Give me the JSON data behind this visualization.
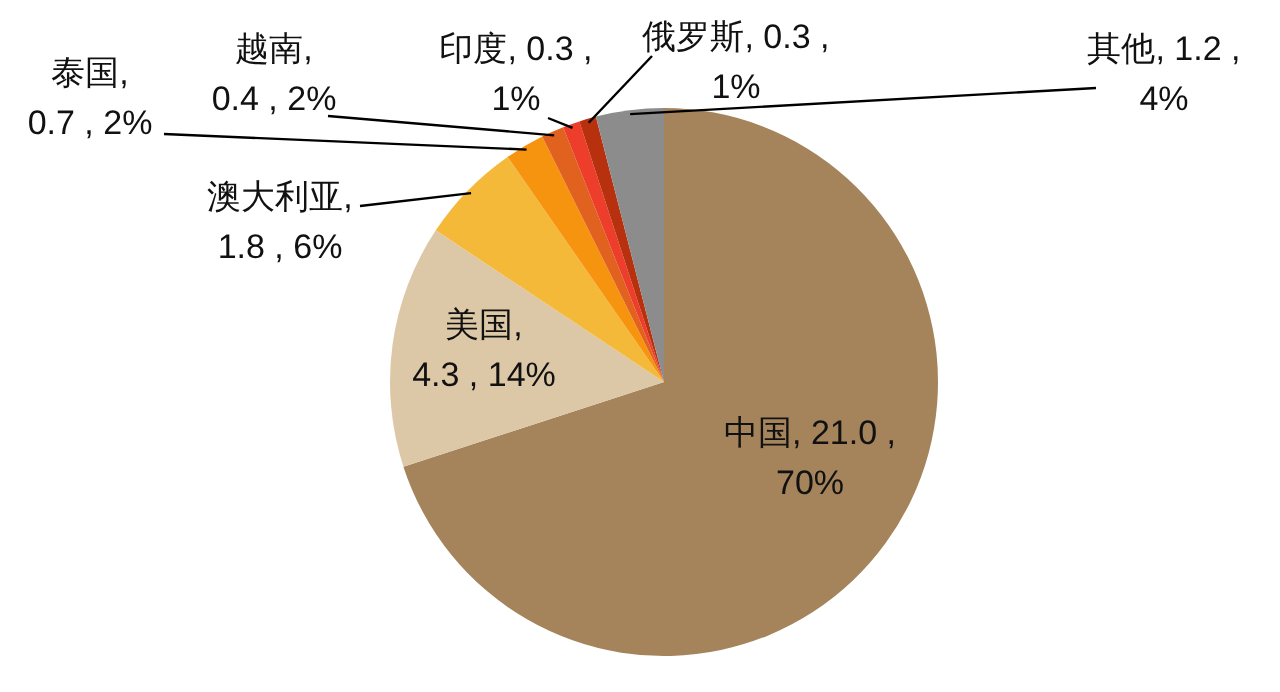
{
  "chart_data": {
    "type": "pie",
    "categories": [
      "中国",
      "美国",
      "澳大利亚",
      "泰国",
      "越南",
      "印度",
      "俄罗斯",
      "其他"
    ],
    "values": [
      21.0,
      4.3,
      1.8,
      0.7,
      0.4,
      0.3,
      0.3,
      1.2
    ],
    "value_labels": [
      ", 21.0 , 70%",
      ", 4.3 , 14%",
      ", 1.8 , 6%",
      ", 0.7 , 2%",
      ", 0.4 , 2%",
      ", 0.3 , 1%",
      ", 0.3 , 1%",
      ", 1.2 , 4%"
    ],
    "colors": [
      "#a5845c",
      "#dcc8a6",
      "#f5b93a",
      "#f7940f",
      "#e0621e",
      "#ec3e2a",
      "#b8310f",
      "#8c8c8c"
    ]
  }
}
